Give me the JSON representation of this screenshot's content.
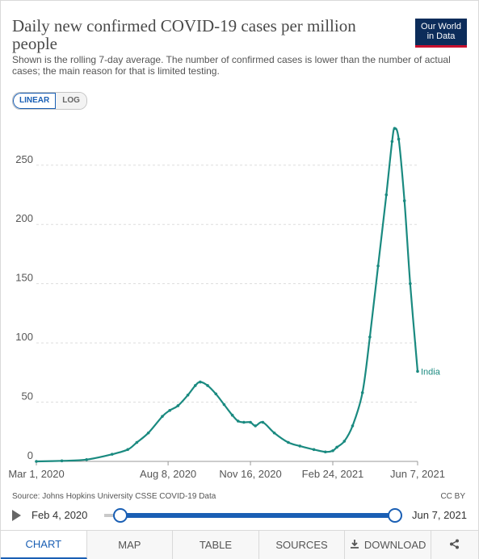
{
  "header": {
    "title": "Daily new confirmed COVID-19 cases per million people",
    "subtitle": "Shown is the rolling 7-day average. The number of confirmed cases is lower than the number of actual cases; the main reason for that is limited testing.",
    "logo_line1": "Our World",
    "logo_line2": "in Data"
  },
  "scale_toggle": {
    "linear": "LINEAR",
    "log": "LOG",
    "selected": "LINEAR"
  },
  "colors": {
    "series": "#1a8a80",
    "accent": "#1a5fb4",
    "grid": "#dddddd",
    "axis": "#555555"
  },
  "chart_data": {
    "type": "line",
    "title": "Daily new confirmed COVID-19 cases per million people",
    "xlabel": "",
    "ylabel": "",
    "ylim": [
      0,
      290
    ],
    "y_ticks": [
      0,
      50,
      100,
      150,
      200,
      250
    ],
    "x_ticks": [
      "Mar 1, 2020",
      "Aug 8, 2020",
      "Nov 16, 2020",
      "Feb 24, 2021",
      "Jun 7, 2021"
    ],
    "x_tick_dates": [
      "2020-03-01",
      "2020-08-08",
      "2020-11-16",
      "2021-02-24",
      "2021-06-07"
    ],
    "grid": "horizontal dashed",
    "legend": "end-of-line label",
    "series": [
      {
        "name": "India",
        "color": "#1a8a80",
        "x": [
          "2020-03-01",
          "2020-04-01",
          "2020-05-01",
          "2020-06-01",
          "2020-06-20",
          "2020-07-01",
          "2020-07-15",
          "2020-08-01",
          "2020-08-10",
          "2020-08-20",
          "2020-09-01",
          "2020-09-10",
          "2020-09-16",
          "2020-09-25",
          "2020-10-05",
          "2020-10-15",
          "2020-10-25",
          "2020-11-01",
          "2020-11-08",
          "2020-11-16",
          "2020-11-22",
          "2020-12-01",
          "2020-12-15",
          "2021-01-01",
          "2021-01-15",
          "2021-02-01",
          "2021-02-15",
          "2021-02-24",
          "2021-03-01",
          "2021-03-10",
          "2021-03-20",
          "2021-04-01",
          "2021-04-10",
          "2021-04-20",
          "2021-04-30",
          "2021-05-07",
          "2021-05-10",
          "2021-05-15",
          "2021-05-22",
          "2021-05-29",
          "2021-06-07"
        ],
        "values": [
          0,
          0.5,
          1.5,
          6,
          10,
          16,
          24,
          38,
          43,
          47,
          56,
          64,
          67,
          64,
          57,
          48,
          39,
          34,
          33,
          33,
          30,
          33,
          24,
          16,
          13,
          10,
          8,
          9,
          12,
          17,
          30,
          58,
          105,
          165,
          225,
          270,
          281,
          272,
          220,
          150,
          76
        ]
      }
    ]
  },
  "footer": {
    "source": "Source: Johns Hopkins University CSSE COVID-19 Data",
    "license": "CC BY"
  },
  "timeline": {
    "start": "Feb 4, 2020",
    "end": "Jun 7, 2021"
  },
  "tabs": [
    {
      "label": "CHART",
      "icon": ""
    },
    {
      "label": "MAP",
      "icon": ""
    },
    {
      "label": "TABLE",
      "icon": ""
    },
    {
      "label": "SOURCES",
      "icon": ""
    },
    {
      "label": "DOWNLOAD",
      "icon": "download-icon"
    },
    {
      "label": "",
      "icon": "share-icon"
    }
  ]
}
